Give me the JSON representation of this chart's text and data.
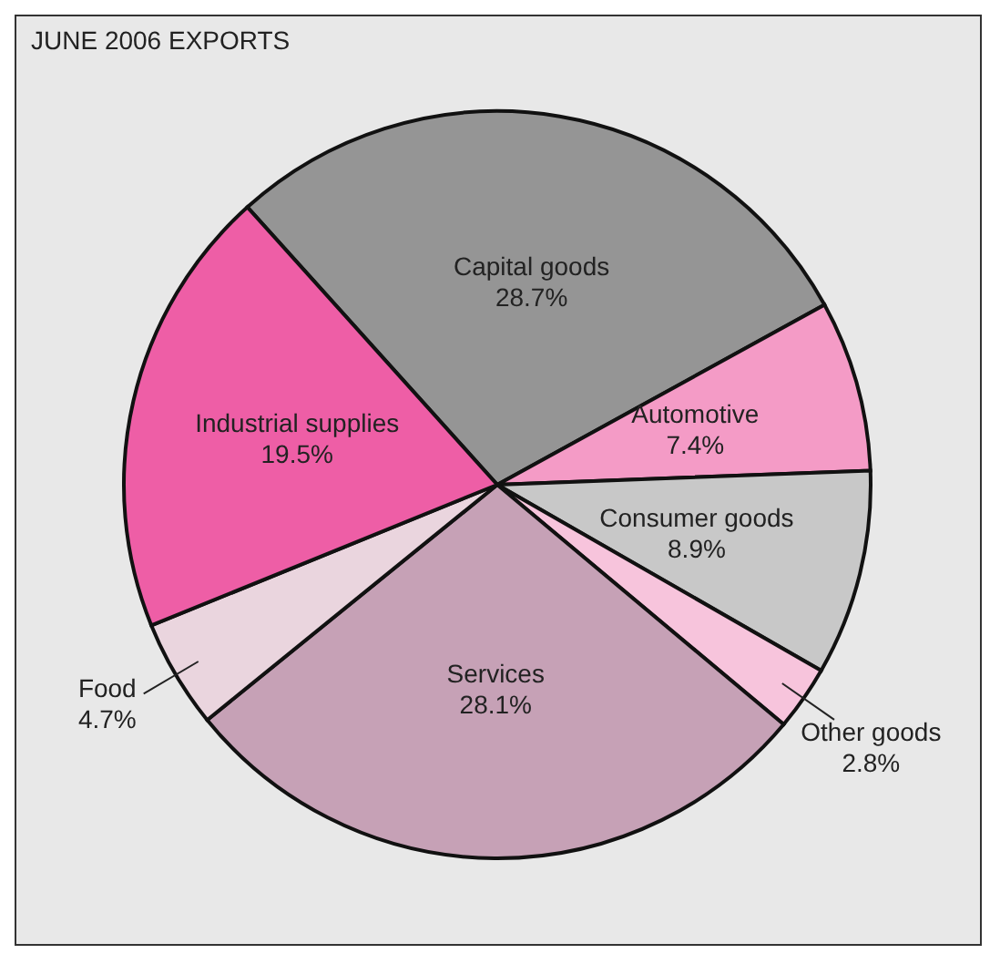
{
  "chart_data": {
    "type": "pie",
    "title": "JUNE 2006 EXPORTS",
    "categories": [
      "Capital goods",
      "Automotive",
      "Consumer goods",
      "Other goods",
      "Services",
      "Food",
      "Industrial supplies"
    ],
    "values": [
      28.7,
      7.4,
      8.9,
      2.8,
      28.1,
      4.7,
      19.5
    ],
    "value_labels": [
      "28.7%",
      "7.4%",
      "8.9%",
      "2.8%",
      "28.1%",
      "4.7%",
      "19.5%"
    ],
    "colors": [
      "#959595",
      "#f49bc6",
      "#c8c8c8",
      "#f7c4dc",
      "#c6a1b6",
      "#ead5de",
      "#ee5ea6"
    ],
    "legend": false
  }
}
